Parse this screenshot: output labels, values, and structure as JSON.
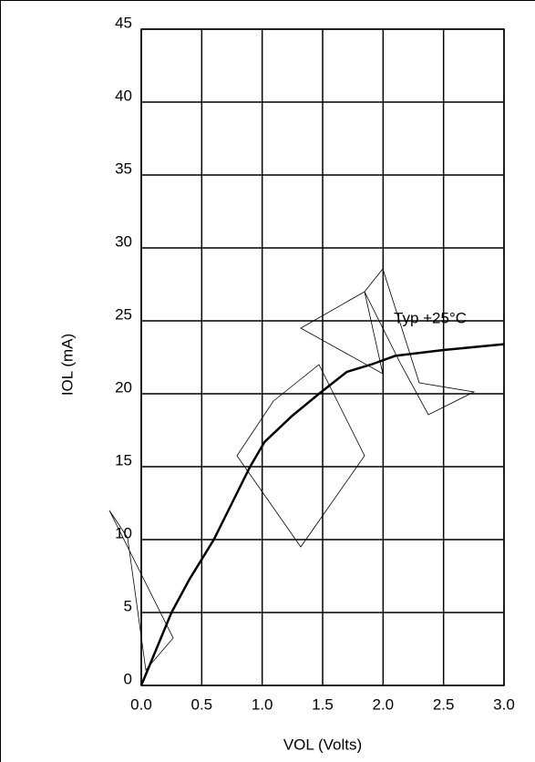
{
  "chart_data": {
    "type": "line",
    "x_label": "VOL (Volts)",
    "y_label": "IOL (mA)",
    "annotation": "Typ +25°C",
    "series": [
      {
        "name": "Typ +25°C",
        "color": "#000000",
        "x": [
          0,
          0.25,
          0.4,
          0.6,
          0.75,
          0.9,
          1.02,
          1.25,
          1.47,
          1.7,
          1.9,
          2.1,
          2.5,
          3.0
        ],
        "values": [
          0,
          5,
          7.3,
          10,
          12.5,
          15,
          16.7,
          18.5,
          20,
          21.5,
          22,
          22.6,
          23,
          23.4
        ]
      }
    ],
    "xlim": [
      0,
      3.0
    ],
    "xticks": [
      {
        "value": 0,
        "label": "0.0"
      },
      {
        "value": 0.5,
        "label": "0.5"
      },
      {
        "value": 1,
        "label": "1.0"
      },
      {
        "value": 1.5,
        "label": "1.5"
      },
      {
        "value": 2,
        "label": "2.0"
      },
      {
        "value": 2.5,
        "label": "2.5"
      },
      {
        "value": 3,
        "label": "3.0"
      }
    ],
    "ylim": [
      0,
      45
    ],
    "yticks": [
      0,
      5,
      10,
      15,
      20,
      25,
      30,
      35,
      40,
      45
    ],
    "grid": true
  }
}
